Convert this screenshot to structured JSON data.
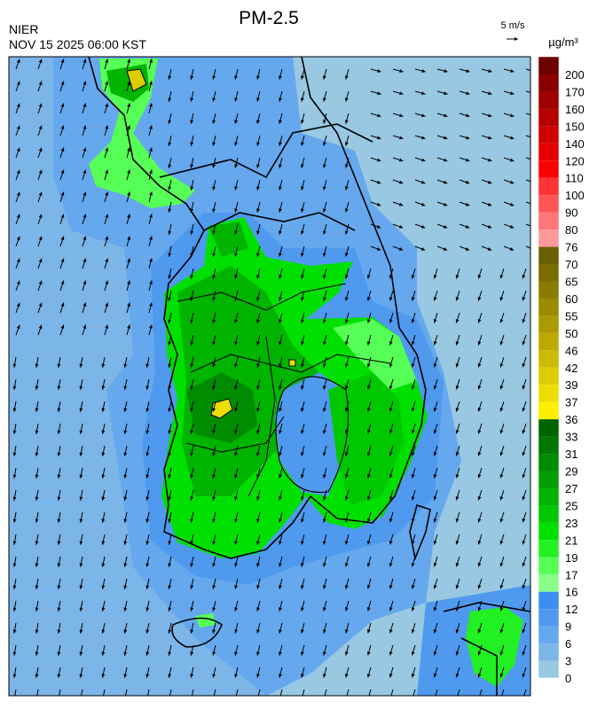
{
  "header": {
    "title": "PM-2.5",
    "agency": "NIER",
    "datetime": "NOV 15 2025 06:00 KST",
    "wind_scale": "5 m/s"
  },
  "colorbar": {
    "unit": "µg/m³",
    "levels": [
      200,
      170,
      160,
      150,
      140,
      120,
      110,
      100,
      90,
      80,
      76,
      70,
      65,
      60,
      55,
      50,
      46,
      42,
      39,
      37,
      36,
      33,
      31,
      29,
      27,
      25,
      23,
      21,
      19,
      17,
      16,
      12,
      9,
      6,
      3,
      0
    ],
    "colors": [
      "#6e0000",
      "#8a0000",
      "#a00000",
      "#b70000",
      "#cf0000",
      "#e60000",
      "#ff0000",
      "#ff3333",
      "#ff5555",
      "#ff7777",
      "#ff9999",
      "#6a5f00",
      "#7a6d00",
      "#8a7c00",
      "#9a8b00",
      "#ab9a00",
      "#bcaa00",
      "#ccba00",
      "#ddcc00",
      "#eedd00",
      "#ffee00",
      "#006400",
      "#007800",
      "#008c00",
      "#00a000",
      "#00b400",
      "#00c800",
      "#00e000",
      "#22f022",
      "#55ff55",
      "#88ff88",
      "#3a8ef0",
      "#4f9aef",
      "#65a8ee",
      "#7cb5e8",
      "#98c8e2"
    ]
  }
}
